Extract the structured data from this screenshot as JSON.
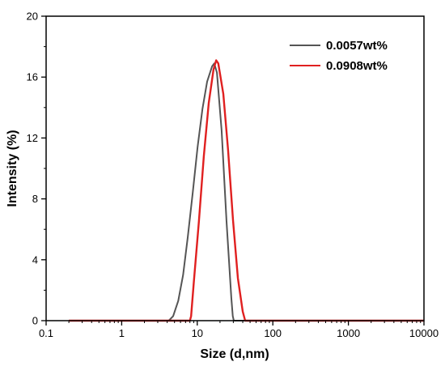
{
  "chart_data": {
    "type": "line",
    "title": "",
    "xlabel": "Size (d,nm)",
    "ylabel": "Intensity (%)",
    "xscale": "log",
    "xlim": [
      0.1,
      10000
    ],
    "ylim": [
      0,
      20
    ],
    "xticks": [
      0.1,
      1,
      10,
      100,
      1000,
      10000
    ],
    "xtick_labels": [
      "0.1",
      "1",
      "10",
      "100",
      "1000",
      "10000"
    ],
    "yticks": [
      0,
      4,
      8,
      12,
      16,
      20
    ],
    "ytick_labels": [
      "0",
      "4",
      "8",
      "12",
      "16",
      "20"
    ],
    "grid": false,
    "legend_position": "top-right",
    "series": [
      {
        "name": "0.0057wt%",
        "color": "#555555",
        "points": [
          [
            0.2,
            0
          ],
          [
            4.2,
            0
          ],
          [
            4.8,
            0.3
          ],
          [
            5.6,
            1.3
          ],
          [
            6.5,
            3.0
          ],
          [
            7.5,
            5.5
          ],
          [
            8.7,
            8.4
          ],
          [
            10.1,
            11.4
          ],
          [
            11.7,
            13.9
          ],
          [
            13.5,
            15.7
          ],
          [
            15.7,
            16.7
          ],
          [
            16.8,
            16.9
          ],
          [
            18.2,
            16.3
          ],
          [
            21.0,
            12.5
          ],
          [
            24.4,
            6.5
          ],
          [
            28.2,
            1.5
          ],
          [
            29.5,
            0.3
          ],
          [
            30.5,
            0
          ],
          [
            10000,
            0
          ]
        ]
      },
      {
        "name": "0.0908wt%",
        "color": "#e02020",
        "points": [
          [
            0.2,
            0
          ],
          [
            8.0,
            0
          ],
          [
            8.3,
            0.3
          ],
          [
            9.0,
            2.5
          ],
          [
            10.5,
            6.5
          ],
          [
            12.2,
            10.8
          ],
          [
            14.2,
            14.3
          ],
          [
            16.4,
            16.5
          ],
          [
            17.8,
            17.1
          ],
          [
            19.0,
            16.9
          ],
          [
            22.1,
            14.9
          ],
          [
            25.6,
            11.2
          ],
          [
            29.7,
            6.6
          ],
          [
            34.5,
            2.8
          ],
          [
            40.0,
            0.6
          ],
          [
            43.0,
            0
          ],
          [
            10000,
            0
          ]
        ]
      }
    ]
  }
}
